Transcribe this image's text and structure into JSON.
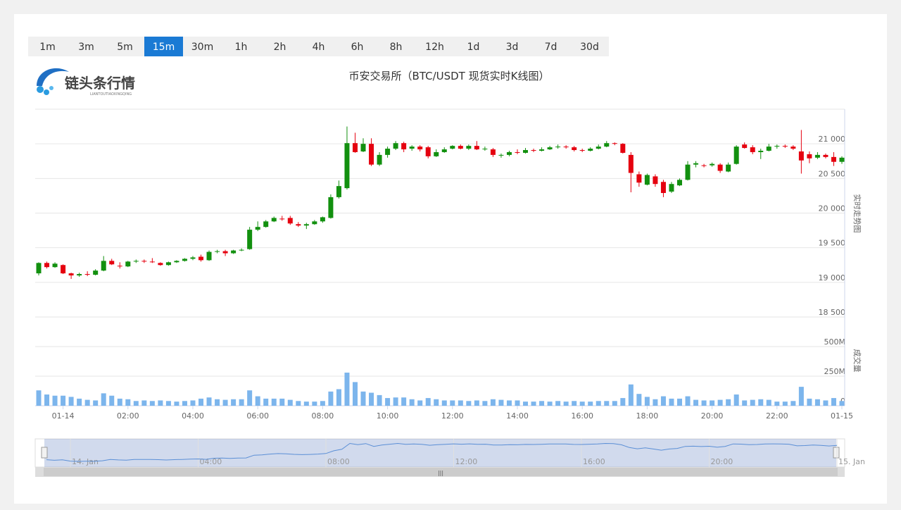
{
  "periods": [
    "1m",
    "3m",
    "5m",
    "15m",
    "30m",
    "1h",
    "2h",
    "4h",
    "6h",
    "8h",
    "12h",
    "1d",
    "3d",
    "7d",
    "30d"
  ],
  "active_period": 3,
  "logo": {
    "text": "链头条行情",
    "subtext": "LIANTOUTIAOXINGQING"
  },
  "navigator": {
    "labels": [
      "14. Jan",
      "04:00",
      "08:00",
      "12:00",
      "16:00",
      "20:00",
      "15. Jan"
    ]
  },
  "chart_data": {
    "type": "candlestick",
    "title": "币安交易所（BTC/USDT 现货实时K线图）",
    "y_label": "实时走势图",
    "y2_label": "成交量",
    "up_color": "#12900f",
    "down_color": "#e5000f",
    "volume_color": "#7cb5ec",
    "grid": true,
    "ylim": [
      18500,
      21500
    ],
    "yticks": [
      {
        "value": 18500,
        "label": "18 500"
      },
      {
        "value": 19000,
        "label": "19 000"
      },
      {
        "value": 19500,
        "label": "19 500"
      },
      {
        "value": 20000,
        "label": "20 000"
      },
      {
        "value": 20500,
        "label": "20 500"
      },
      {
        "value": 21000,
        "label": "21 000"
      }
    ],
    "y2lim": [
      0,
      500
    ],
    "y2ticks": [
      0,
      {
        "value": 250,
        "label": "250M"
      },
      {
        "value": 500,
        "label": "500M"
      }
    ],
    "categories": [
      null,
      null,
      null,
      "01-14",
      null,
      null,
      null,
      null,
      null,
      null,
      null,
      "02:00",
      null,
      null,
      null,
      null,
      null,
      null,
      null,
      "04:00",
      null,
      null,
      null,
      null,
      null,
      null,
      null,
      "06:00",
      null,
      null,
      null,
      null,
      null,
      null,
      null,
      "08:00",
      null,
      null,
      null,
      null,
      null,
      null,
      null,
      "10:00",
      null,
      null,
      null,
      null,
      null,
      null,
      null,
      "12:00",
      null,
      null,
      null,
      null,
      null,
      null,
      null,
      "14:00",
      null,
      null,
      null,
      null,
      null,
      null,
      null,
      "16:00",
      null,
      null,
      null,
      null,
      null,
      null,
      null,
      "18:00",
      null,
      null,
      null,
      null,
      null,
      null,
      null,
      "20:00",
      null,
      null,
      null,
      null,
      null,
      null,
      null,
      "22:00",
      null,
      null,
      null,
      null,
      null,
      null,
      null,
      "01-15"
    ],
    "open": [
      19130,
      19280,
      19220,
      19250,
      19130,
      19100,
      19120,
      19110,
      19170,
      19310,
      19240,
      19230,
      19300,
      19310,
      19300,
      19280,
      19250,
      19290,
      19310,
      19340,
      19370,
      19320,
      19440,
      19450,
      19420,
      19460,
      19480,
      19760,
      19800,
      19880,
      19920,
      19930,
      19840,
      19820,
      19840,
      19880,
      19930,
      20230,
      20360,
      21010,
      20890,
      21000,
      20700,
      20840,
      20930,
      21010,
      20930,
      20960,
      20950,
      20820,
      20880,
      20930,
      20970,
      20930,
      20970,
      20920,
      20920,
      20830,
      20840,
      20880,
      20870,
      20910,
      20900,
      20920,
      20950,
      20960,
      20950,
      20910,
      20900,
      20930,
      20960,
      21010,
      21000,
      20840,
      20560,
      20410,
      20530,
      20450,
      20310,
      20400,
      20480,
      20700,
      20690,
      20690,
      20700,
      20600,
      20710,
      20990,
      20950,
      20880,
      20900,
      20960,
      20970,
      20960,
      20890,
      20850,
      20800,
      20840,
      20810,
      20740
    ],
    "high": [
      19290,
      19300,
      19290,
      19260,
      19140,
      19140,
      19160,
      19190,
      19380,
      19340,
      19290,
      19310,
      19330,
      19330,
      19350,
      19290,
      19300,
      19320,
      19350,
      19380,
      19400,
      19460,
      19470,
      19470,
      19470,
      19490,
      19800,
      19880,
      19900,
      19950,
      19960,
      19960,
      19870,
      19860,
      19900,
      19950,
      20270,
      20470,
      21250,
      21160,
      21080,
      21080,
      20880,
      20960,
      21040,
      21030,
      20980,
      20980,
      20970,
      20920,
      20950,
      20980,
      20990,
      20990,
      21040,
      20960,
      20940,
      20860,
      20900,
      20920,
      20940,
      20930,
      20950,
      20970,
      20990,
      20980,
      20970,
      20930,
      20950,
      20990,
      21040,
      21020,
      21010,
      20880,
      20600,
      20570,
      20560,
      20480,
      20450,
      20500,
      20750,
      20750,
      20710,
      20730,
      20720,
      20730,
      20980,
      21020,
      20980,
      20930,
      21000,
      20990,
      20990,
      20980,
      21200,
      20890,
      20880,
      20860,
      20880,
      20820
    ],
    "low": [
      19100,
      19200,
      19210,
      19120,
      19050,
      19080,
      19090,
      19100,
      19160,
      19250,
      19200,
      19220,
      19280,
      19280,
      19280,
      19240,
      19240,
      19280,
      19300,
      19320,
      19300,
      19310,
      19420,
      19380,
      19410,
      19450,
      19470,
      19740,
      19790,
      19870,
      19890,
      19830,
      19800,
      19770,
      19830,
      19860,
      19920,
      20210,
      20340,
      20870,
      20880,
      20680,
      20680,
      20800,
      20910,
      20880,
      20900,
      20890,
      20790,
      20810,
      20870,
      20920,
      20920,
      20910,
      20910,
      20900,
      20810,
      20800,
      20820,
      20850,
      20860,
      20880,
      20890,
      20910,
      20930,
      20930,
      20890,
      20880,
      20890,
      20920,
      20950,
      20980,
      20860,
      20300,
      20380,
      20400,
      20380,
      20230,
      20290,
      20390,
      20470,
      20660,
      20660,
      20670,
      20580,
      20590,
      20700,
      20930,
      20850,
      20780,
      20890,
      20930,
      20940,
      20910,
      20570,
      20720,
      20780,
      20790,
      20680,
      20710
    ],
    "close": [
      19280,
      19220,
      19270,
      19130,
      19100,
      19120,
      19110,
      19170,
      19310,
      19260,
      19230,
      19300,
      19310,
      19300,
      19290,
      19250,
      19290,
      19310,
      19340,
      19360,
      19320,
      19440,
      19450,
      19420,
      19460,
      19470,
      19760,
      19800,
      19880,
      19930,
      19910,
      19850,
      19820,
      19840,
      19880,
      19940,
      20230,
      20390,
      21010,
      20880,
      21000,
      20700,
      20840,
      20930,
      21010,
      20920,
      20960,
      20920,
      20820,
      20880,
      20920,
      20970,
      20930,
      20970,
      20920,
      20930,
      20840,
      20840,
      20880,
      20870,
      20910,
      20900,
      20920,
      20950,
      20960,
      20950,
      20910,
      20900,
      20930,
      20960,
      21010,
      21000,
      20870,
      20580,
      20440,
      20550,
      20420,
      20290,
      20420,
      20480,
      20700,
      20720,
      20680,
      20710,
      20610,
      20700,
      20960,
      20940,
      20880,
      20900,
      20960,
      20970,
      20960,
      20930,
      20760,
      20790,
      20840,
      20810,
      20740,
      20800
    ],
    "volume": [
      130,
      95,
      85,
      85,
      75,
      60,
      50,
      45,
      105,
      85,
      60,
      55,
      40,
      45,
      40,
      45,
      40,
      35,
      40,
      45,
      60,
      70,
      55,
      50,
      55,
      55,
      130,
      80,
      60,
      60,
      60,
      50,
      40,
      35,
      35,
      40,
      120,
      140,
      280,
      200,
      120,
      110,
      90,
      65,
      70,
      70,
      55,
      45,
      65,
      55,
      45,
      45,
      45,
      40,
      45,
      40,
      55,
      50,
      45,
      45,
      35,
      35,
      40,
      35,
      40,
      35,
      40,
      35,
      35,
      40,
      40,
      40,
      65,
      180,
      100,
      75,
      55,
      80,
      60,
      60,
      80,
      50,
      45,
      45,
      50,
      55,
      95,
      45,
      50,
      55,
      50,
      35,
      35,
      40,
      160,
      60,
      55,
      45,
      65,
      40
    ]
  }
}
